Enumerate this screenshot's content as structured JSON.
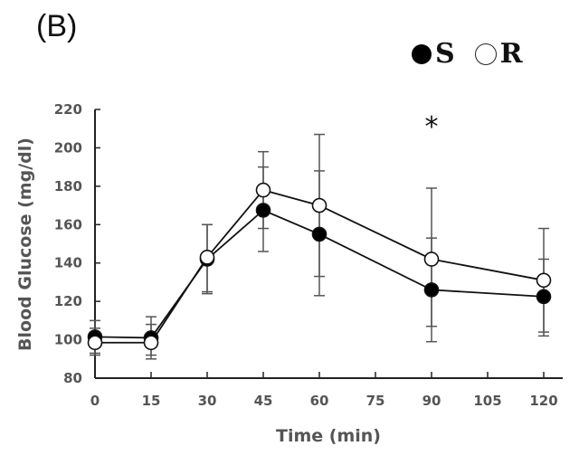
{
  "panel_label": "(B)",
  "legend": [
    {
      "marker": "filled-circle",
      "label": "S"
    },
    {
      "marker": "open-circle",
      "label": "R"
    }
  ],
  "chart_data": {
    "type": "line",
    "title": "",
    "xlabel": "Time (min)",
    "ylabel": "Blood Glucose (mg/dl)",
    "xlim": [
      0,
      120
    ],
    "ylim": [
      80,
      220
    ],
    "xticks": [
      0,
      15,
      30,
      45,
      60,
      75,
      90,
      105,
      120
    ],
    "yticks": [
      80,
      100,
      120,
      140,
      160,
      180,
      200,
      220
    ],
    "grid": false,
    "legend_position": "top-right",
    "x": [
      0,
      15,
      30,
      45,
      60,
      90,
      120
    ],
    "series": [
      {
        "name": "S",
        "marker": "filled-circle",
        "values": [
          101.5,
          101,
          142,
          167.5,
          155,
          126,
          122.5
        ],
        "error_upper": [
          110,
          112,
          160,
          190,
          188,
          153,
          142
        ],
        "error_lower": [
          93,
          90,
          125,
          146,
          123,
          99,
          102
        ]
      },
      {
        "name": "R",
        "marker": "open-circle",
        "values": [
          98.5,
          98.5,
          143,
          178,
          170,
          142,
          131
        ],
        "error_upper": [
          106,
          108,
          160,
          198,
          207,
          179,
          158
        ],
        "error_lower": [
          92,
          92,
          124,
          158,
          133,
          107,
          104
        ]
      }
    ],
    "annotations": [
      {
        "text": "*",
        "x": 90,
        "y": 213
      }
    ]
  }
}
